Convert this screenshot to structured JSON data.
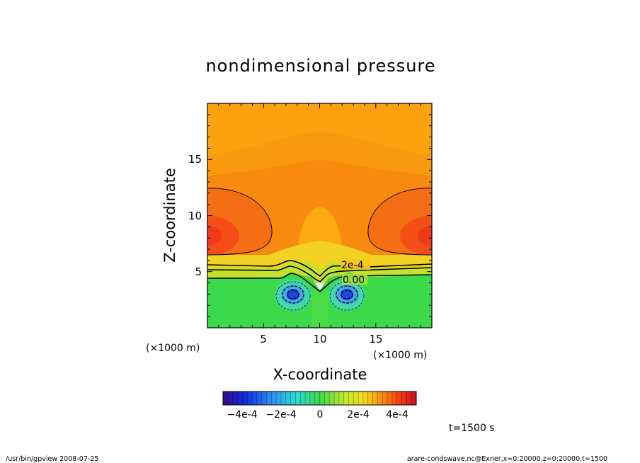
{
  "chart_data": {
    "type": "heatmap",
    "title": "nondimensional pressure",
    "xlabel": "X-coordinate",
    "ylabel": "Z-coordinate",
    "xlim": [
      0,
      20
    ],
    "ylim": [
      0,
      20
    ],
    "x_ticks": [
      "5",
      "10",
      "15"
    ],
    "y_ticks": [
      "5",
      "10",
      "15"
    ],
    "x_unit": "(×1000 m)",
    "y_unit": "(×1000 m)",
    "contour_labels": [
      "2e-4",
      "0.00"
    ],
    "colorbar": {
      "range": [
        -0.0005,
        0.0005
      ],
      "tick_labels": [
        "−4e-4",
        "−2e-4",
        "0",
        "2e-4",
        "4e-4"
      ],
      "tick_values": [
        -0.0004,
        -0.0002,
        0,
        0.0002,
        0.0004
      ]
    },
    "field_features": [
      {
        "kind": "minimum",
        "x": 7.5,
        "z": 2.9,
        "value": -0.00045
      },
      {
        "kind": "minimum",
        "x": 12.5,
        "z": 2.9,
        "value": -0.00045
      },
      {
        "kind": "maximum",
        "x": 0.5,
        "z": 8.2,
        "value": 0.00038
      },
      {
        "kind": "maximum",
        "x": 19.5,
        "z": 8.2,
        "value": 0.00038
      }
    ]
  },
  "time_label": "t=1500 s",
  "footer": {
    "left": "/usr/bin/gpview   2008-07-25",
    "right": "arare-condswave.nc@Exner,x=0:20000,z=0:20000,t=1500"
  }
}
